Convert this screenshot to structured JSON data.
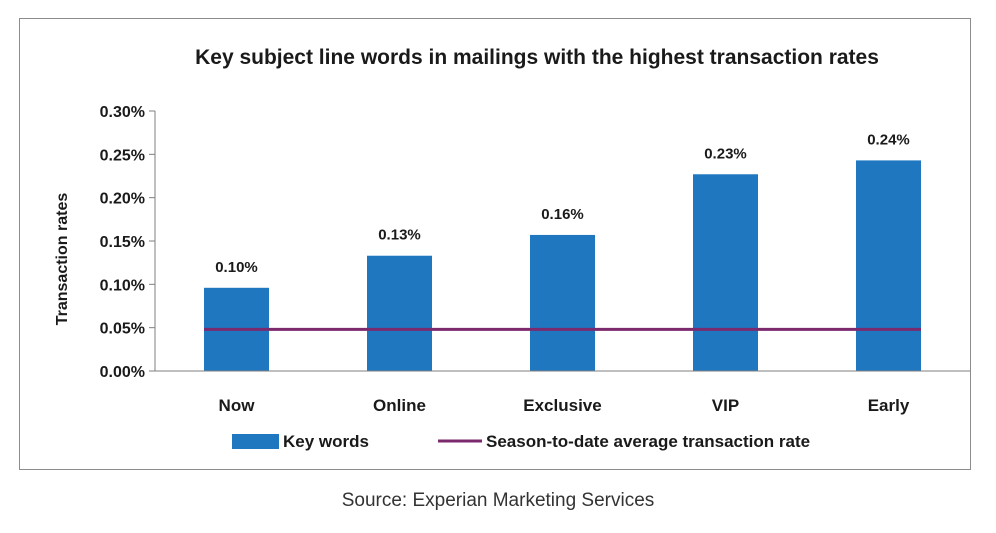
{
  "chart_data": {
    "type": "bar",
    "title": "Key subject line words in mailings with the highest transaction  rates",
    "ylabel": "Transaction rates",
    "xlabel": "",
    "categories": [
      "Now",
      "Online",
      "Exclusive",
      "VIP",
      "Early"
    ],
    "series": [
      {
        "name": "Key words",
        "type": "bar",
        "color": "#1f77c0",
        "values": [
          0.1,
          0.13,
          0.16,
          0.23,
          0.24
        ],
        "heights": [
          0.096,
          0.133,
          0.157,
          0.227,
          0.243
        ],
        "labels": [
          "0.10%",
          "0.13%",
          "0.16%",
          "0.23%",
          "0.24%"
        ]
      },
      {
        "name": "Season-to-date average transaction rate",
        "type": "line",
        "color": "#7b2a6e",
        "value": 0.048
      }
    ],
    "ylim": [
      0,
      0.3
    ],
    "yticks": [
      0,
      0.05,
      0.1,
      0.15,
      0.2,
      0.25,
      0.3
    ],
    "ytick_labels": [
      "0.00%",
      "0.05%",
      "0.10%",
      "0.15%",
      "0.20%",
      "0.25%",
      "0.30%"
    ],
    "legend_position": "bottom",
    "grid": false
  },
  "source": "Source: Experian Marketing Services"
}
